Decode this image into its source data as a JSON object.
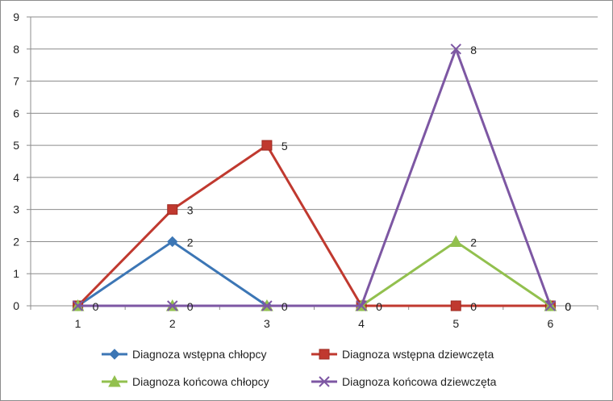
{
  "chart_data": {
    "type": "line",
    "title": "",
    "xlabel": "",
    "ylabel": "",
    "categories": [
      "1",
      "2",
      "3",
      "4",
      "5",
      "6"
    ],
    "ylim": [
      0,
      9
    ],
    "yticks": [
      0,
      1,
      2,
      3,
      4,
      5,
      6,
      7,
      8,
      9
    ],
    "grid": true,
    "legend_position": "bottom",
    "series": [
      {
        "name": "Diagnoza wstępna chłopcy",
        "values": [
          0,
          2,
          0,
          0,
          0,
          0
        ],
        "color": "#3c76b5",
        "marker": "diamond",
        "data_labels": [
          null,
          "2",
          null,
          null,
          null,
          null
        ]
      },
      {
        "name": "Diagnoza wstępna dziewczęta",
        "values": [
          0,
          3,
          5,
          0,
          0,
          0
        ],
        "color": "#c0392f",
        "marker": "square",
        "data_labels": [
          null,
          "3",
          "5",
          null,
          "0",
          null
        ]
      },
      {
        "name": "Diagnoza końcowa chłopcy",
        "values": [
          0,
          0,
          0,
          0,
          2,
          0
        ],
        "color": "#92c04e",
        "marker": "triangle",
        "data_labels": [
          null,
          null,
          null,
          null,
          "2",
          "0"
        ]
      },
      {
        "name": "Diagnoza końcowa dziewczęta",
        "values": [
          0,
          0,
          0,
          0,
          8,
          0
        ],
        "color": "#7d57a3",
        "marker": "x",
        "data_labels": [
          "0",
          "0",
          "0",
          "0",
          "8",
          "0"
        ]
      }
    ]
  }
}
